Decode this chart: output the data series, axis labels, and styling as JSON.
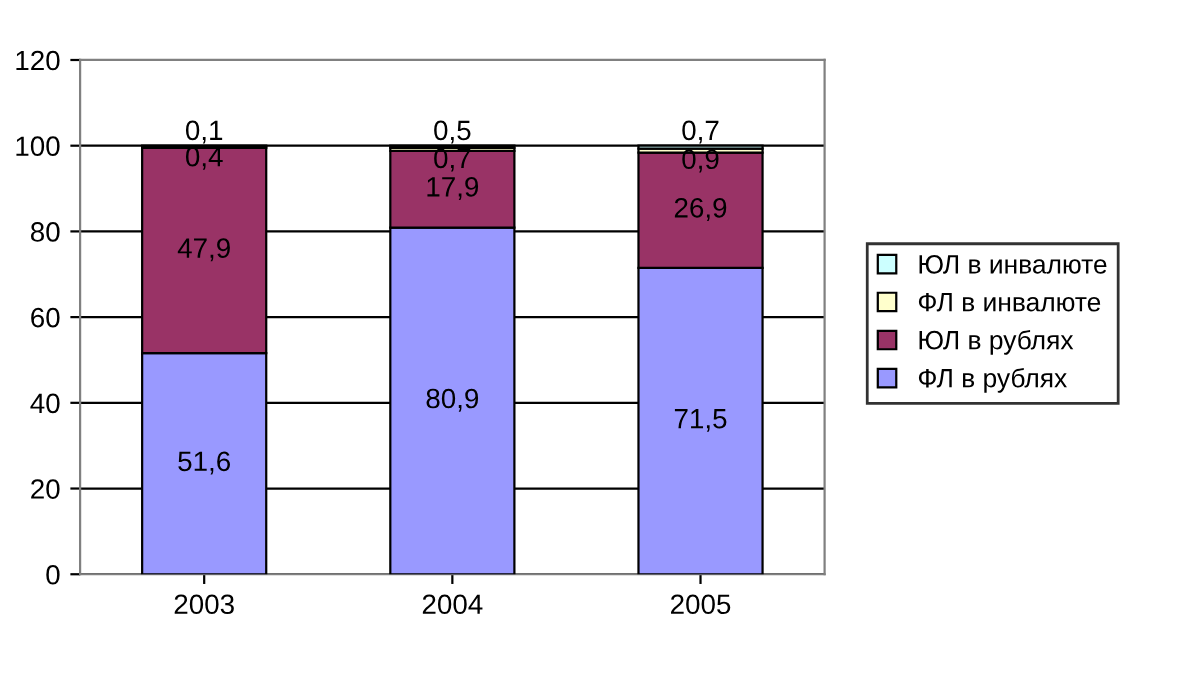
{
  "chart_data": {
    "type": "bar",
    "stacked": true,
    "categories": [
      "2003",
      "2004",
      "2005"
    ],
    "series": [
      {
        "name": "ФЛ в рублях",
        "color": "#9999ff",
        "values": [
          51.6,
          80.9,
          71.5
        ],
        "value_labels": [
          "51,6",
          "80,9",
          "71,5"
        ]
      },
      {
        "name": "ЮЛ в рублях",
        "color": "#993366",
        "values": [
          47.9,
          17.9,
          26.9
        ],
        "value_labels": [
          "47,9",
          "17,9",
          "26,9"
        ]
      },
      {
        "name": "ФЛ в инвалюте",
        "color": "#ffffcc",
        "values": [
          0.4,
          0.7,
          0.9
        ],
        "value_labels": [
          "0,4",
          "0,7",
          "0,9"
        ]
      },
      {
        "name": "ЮЛ в инвалюте",
        "color": "#ccffff",
        "values": [
          0.1,
          0.5,
          0.7
        ],
        "value_labels": [
          "0,1",
          "0,5",
          "0,7"
        ]
      }
    ],
    "ylim": [
      0,
      120
    ],
    "yticks": [
      0,
      20,
      40,
      60,
      80,
      100,
      120
    ],
    "grid": "y",
    "legend": "right"
  }
}
